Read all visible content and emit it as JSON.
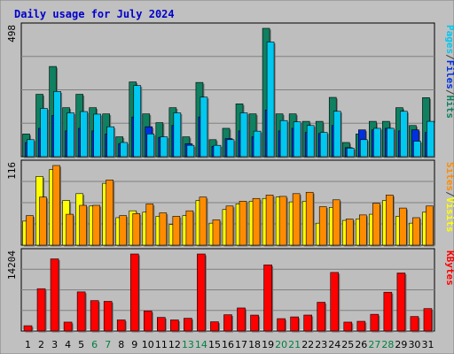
{
  "title": "Daily usage for July 2024",
  "colors": {
    "background": "#c0c0c0",
    "plot_bg": "#bebebe",
    "title": "#0000cc",
    "hits": "#0f8060",
    "files": "#0030e0",
    "pages": "#00c8f0",
    "visits": "#ff8c00",
    "sites": "#ffff00",
    "kbytes": "#ff0000",
    "weekend_label": "#008040",
    "weekday_label": "#000000"
  },
  "chart_data": [
    {
      "type": "bar",
      "name": "hits-files-pages",
      "ymax_label": "498",
      "ymax": 498,
      "legend": [
        "Pages",
        "/",
        "Files",
        "/",
        "Hits"
      ],
      "categories": [
        "1",
        "2",
        "3",
        "4",
        "5",
        "6",
        "7",
        "8",
        "9",
        "10",
        "11",
        "12",
        "13",
        "14",
        "15",
        "16",
        "17",
        "18",
        "19",
        "20",
        "21",
        "22",
        "23",
        "24",
        "25",
        "26",
        "27",
        "28",
        "29",
        "30",
        "31"
      ],
      "weekend_days": [
        "6",
        "7",
        "13",
        "14",
        "20",
        "21",
        "27",
        "28"
      ],
      "series": [
        {
          "name": "Hits",
          "values": [
            88,
            242,
            350,
            190,
            242,
            190,
            166,
            77,
            290,
            166,
            132,
            190,
            77,
            288,
            66,
            110,
            205,
            166,
            498,
            166,
            166,
            137,
            137,
            230,
            55,
            88,
            137,
            137,
            190,
            121,
            229
          ]
        },
        {
          "name": "Files",
          "values": [
            55,
            110,
            160,
            100,
            110,
            100,
            88,
            50,
            154,
            116,
            75,
            121,
            50,
            154,
            40,
            70,
            100,
            77,
            181,
            100,
            110,
            94,
            90,
            121,
            35,
            104,
            104,
            110,
            100,
            104,
            94
          ]
        },
        {
          "name": "Pages",
          "values": [
            66,
            187,
            253,
            170,
            175,
            165,
            116,
            55,
            276,
            88,
            77,
            170,
            44,
            231,
            44,
            66,
            170,
            99,
            445,
            140,
            135,
            121,
            94,
            176,
            33,
            66,
            110,
            110,
            176,
            60,
            137
          ]
        }
      ]
    },
    {
      "type": "bar",
      "name": "visits-sites",
      "ymax_label": "116",
      "ymax": 116,
      "legend": [
        "Sites",
        "/",
        "Visits"
      ],
      "categories": [
        "1",
        "2",
        "3",
        "4",
        "5",
        "6",
        "7",
        "8",
        "9",
        "10",
        "11",
        "12",
        "13",
        "14",
        "15",
        "16",
        "17",
        "18",
        "19",
        "20",
        "21",
        "22",
        "23",
        "24",
        "25",
        "26",
        "27",
        "28",
        "29",
        "30",
        "31"
      ],
      "series": [
        {
          "name": "Visits",
          "values": [
            43,
            70,
            116,
            45,
            58,
            58,
            95,
            43,
            46,
            60,
            47,
            42,
            50,
            70,
            37,
            57,
            64,
            68,
            73,
            71,
            75,
            77,
            56,
            66,
            38,
            44,
            61,
            73,
            54,
            40,
            57
          ]
        },
        {
          "name": "Sites",
          "values": [
            35,
            100,
            110,
            65,
            75,
            57,
            90,
            40,
            50,
            48,
            42,
            30,
            43,
            65,
            32,
            52,
            60,
            64,
            68,
            70,
            63,
            64,
            32,
            55,
            36,
            38,
            45,
            65,
            42,
            32,
            48
          ]
        }
      ]
    },
    {
      "type": "bar",
      "name": "kbytes",
      "ymax_label": "14204",
      "ymax": 14204,
      "legend": [
        "KBytes"
      ],
      "categories": [
        "1",
        "2",
        "3",
        "4",
        "5",
        "6",
        "7",
        "8",
        "9",
        "10",
        "11",
        "12",
        "13",
        "14",
        "15",
        "16",
        "17",
        "18",
        "19",
        "20",
        "21",
        "22",
        "23",
        "24",
        "25",
        "26",
        "27",
        "28",
        "29",
        "30",
        "31"
      ],
      "series": [
        {
          "name": "KBytes",
          "values": [
            970,
            7800,
            13300,
            1640,
            7210,
            5600,
            5470,
            2040,
            14204,
            3690,
            2510,
            2040,
            2350,
            14204,
            1700,
            3000,
            4250,
            2930,
            12200,
            2280,
            2600,
            2940,
            5300,
            10800,
            1640,
            1790,
            3080,
            7150,
            10700,
            2670,
            4130
          ]
        }
      ]
    }
  ]
}
